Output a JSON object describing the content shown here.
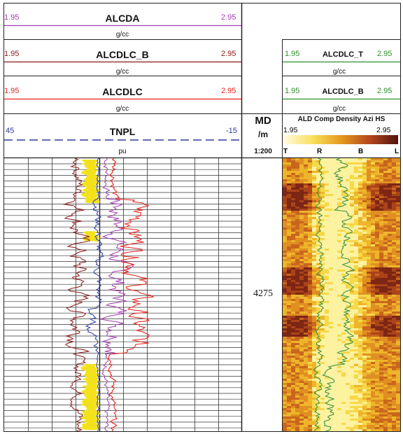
{
  "left_track": {
    "curves": [
      {
        "name": "ALCDA",
        "unit": "g/cc",
        "min": "1.95",
        "max": "2.95",
        "color": "#a23fb0"
      },
      {
        "name": "ALCDLC_B",
        "unit": "g/cc",
        "min": "1.95",
        "max": "2.95",
        "color": "#8b1a1a"
      },
      {
        "name": "ALCDLC",
        "unit": "g/cc",
        "min": "1.95",
        "max": "2.95",
        "color": "#e8231c"
      },
      {
        "name": "TNPL",
        "unit": "pu",
        "min": "45",
        "max": "-15",
        "color": "#2b3a9e"
      }
    ]
  },
  "depth_track": {
    "title": "MD",
    "unit": "/m",
    "scale": "1:200",
    "depth_label": "4275"
  },
  "image_track": {
    "curves": [
      {
        "name": "ALCDLC_T",
        "unit": "g/cc",
        "min": "1.95",
        "max": "2.95",
        "color": "#2f8f2f"
      },
      {
        "name": "ALCDLC_B",
        "unit": "g/cc",
        "min": "1.95",
        "max": "2.95",
        "color": "#2f8f2f"
      }
    ],
    "image_title": "ALD Comp Density Azi HS",
    "image_min": "1.95",
    "image_max": "2.95",
    "orientation_labels": [
      "T",
      "R",
      "B",
      "L"
    ]
  }
}
